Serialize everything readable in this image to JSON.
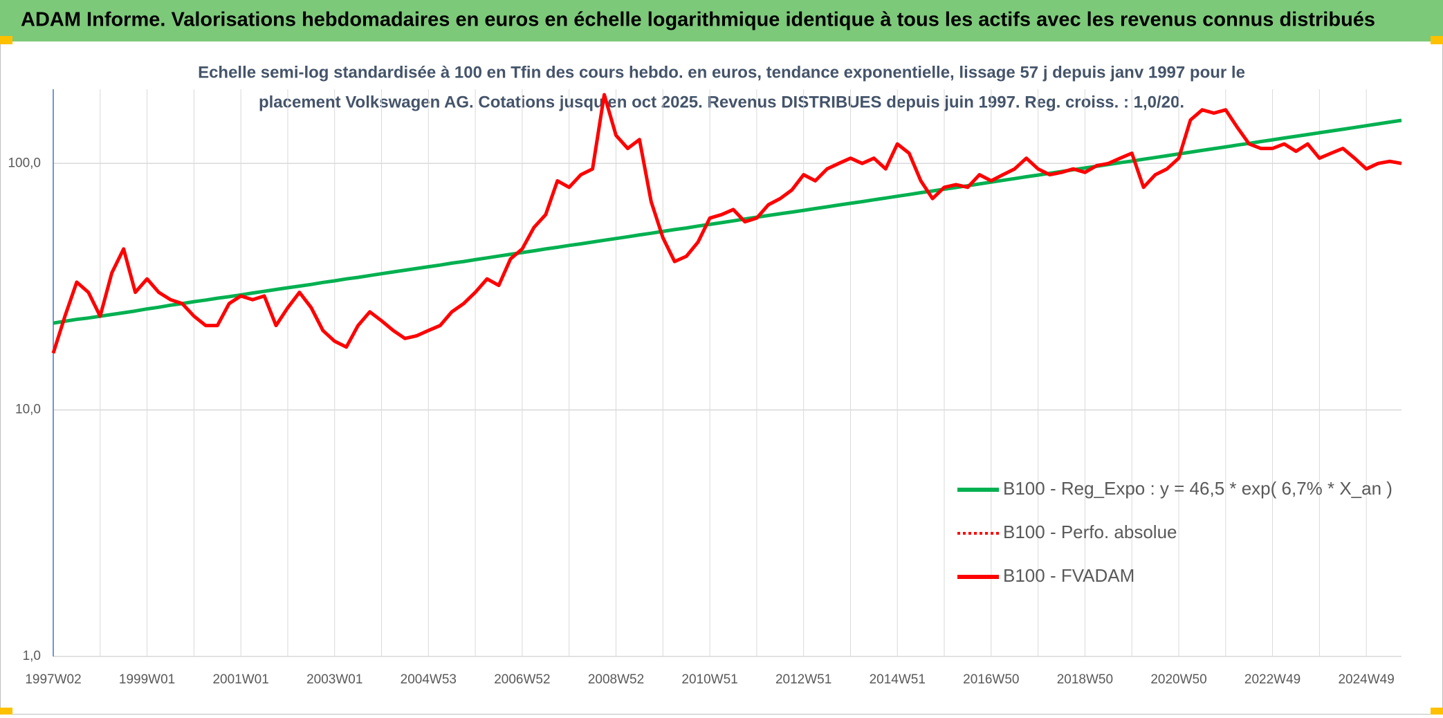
{
  "chart_data": {
    "type": "line",
    "title": "ADAM Informe. Valorisations hebdomadaires en euros en échelle logarithmique identique à tous les actifs avec les revenus connus distribués",
    "subtitle": [
      "Echelle semi-log standardisée à 100 en Tfin des cours hebdo. en euros, tendance exponentielle, lissage 57 j depuis janv 1997 pour le",
      "placement Volkswagen AG. Cotations jusqu'en oct 2025. Revenus DISTRIBUES depuis juin 1997. Reg. croiss. : 1,0/20."
    ],
    "categories": [
      "1997W02",
      null,
      null,
      null,
      null,
      null,
      null,
      null,
      "1999W01",
      null,
      null,
      null,
      null,
      null,
      null,
      null,
      "2001W01",
      null,
      null,
      null,
      null,
      null,
      null,
      null,
      "2003W01",
      null,
      null,
      null,
      null,
      null,
      null,
      null,
      "2004W53",
      null,
      null,
      null,
      null,
      null,
      null,
      null,
      "2006W52",
      null,
      null,
      null,
      null,
      null,
      null,
      null,
      "2008W52",
      null,
      null,
      null,
      null,
      null,
      null,
      null,
      "2010W51",
      null,
      null,
      null,
      null,
      null,
      null,
      null,
      "2012W51",
      null,
      null,
      null,
      null,
      null,
      null,
      null,
      "2014W51",
      null,
      null,
      null,
      null,
      null,
      null,
      null,
      "2016W50",
      null,
      null,
      null,
      null,
      null,
      null,
      null,
      "2018W50",
      null,
      null,
      null,
      null,
      null,
      null,
      null,
      "2020W50",
      null,
      null,
      null,
      null,
      null,
      null,
      null,
      "2022W49",
      null,
      null,
      null,
      null,
      null,
      null,
      null,
      "2024W49",
      null,
      null,
      null
    ],
    "y_scale": "log",
    "ylim": [
      1,
      200
    ],
    "yticks": [
      {
        "value": 1,
        "label": "1,0"
      },
      {
        "value": 10,
        "label": "10,0"
      },
      {
        "value": 100,
        "label": "100,0"
      }
    ],
    "grid": true,
    "series": [
      {
        "name": "B100 - Reg_Expo : y = 46,5 * exp( 6,7% *  X_an )",
        "color": "#00b050",
        "line_style": "solid",
        "values": [
          22.5,
          22.9,
          23.3,
          23.6,
          24.0,
          24.4,
          24.8,
          25.2,
          25.7,
          26.1,
          26.6,
          27.0,
          27.5,
          27.9,
          28.4,
          28.8,
          29.3,
          29.8,
          30.3,
          30.8,
          31.3,
          31.8,
          32.3,
          32.9,
          33.4,
          34.0,
          34.5,
          35.1,
          35.7,
          36.3,
          36.9,
          37.5,
          38.1,
          38.7,
          39.4,
          40.0,
          40.7,
          41.4,
          42.1,
          42.8,
          43.5,
          44.2,
          45.0,
          45.7,
          46.5,
          47.2,
          48.0,
          48.8,
          49.6,
          50.4,
          51.3,
          52.1,
          53.0,
          53.9,
          54.7,
          55.7,
          56.6,
          57.5,
          58.5,
          59.5,
          60.5,
          61.5,
          62.5,
          63.5,
          64.5,
          65.6,
          66.7,
          67.8,
          68.9,
          70.0,
          71.2,
          72.4,
          73.6,
          74.8,
          76.1,
          77.3,
          78.6,
          79.9,
          81.2,
          82.6,
          84.0,
          85.4,
          86.8,
          88.3,
          89.7,
          91.2,
          92.7,
          94.3,
          95.8,
          97.4,
          99.0,
          100.7,
          102.3,
          104.0,
          105.7,
          107.5,
          109.3,
          111.1,
          113.0,
          114.8,
          116.7,
          118.7,
          120.6,
          122.7,
          124.7,
          126.8,
          128.9,
          131.0,
          133.2,
          135.4,
          137.6,
          139.9,
          142.3,
          144.7,
          147.1,
          149.5
        ]
      },
      {
        "name": "B100 - Perfo. absolue",
        "color": "#ff0000",
        "line_style": "dotted",
        "values": [
          17,
          24,
          33,
          30,
          24,
          36,
          45,
          30,
          34,
          30,
          28,
          27,
          24,
          22,
          22,
          27,
          29,
          28,
          29,
          22,
          26,
          30,
          26,
          21,
          19,
          18,
          22,
          25,
          23,
          21,
          19.5,
          20,
          21,
          22,
          25,
          27,
          30,
          34,
          32,
          41,
          45,
          55,
          62,
          85,
          80,
          90,
          95,
          190,
          130,
          115,
          125,
          70,
          50,
          40,
          42,
          48,
          60,
          62,
          65,
          58,
          60,
          68,
          72,
          78,
          90,
          85,
          95,
          100,
          105,
          100,
          105,
          95,
          120,
          110,
          85,
          72,
          80,
          82,
          80,
          90,
          85,
          90,
          95,
          105,
          95,
          90,
          92,
          95,
          92,
          98,
          100,
          105,
          110,
          80,
          90,
          95,
          105,
          150,
          165,
          160,
          165,
          140,
          120,
          115,
          115,
          120,
          112,
          120,
          105,
          110,
          115,
          105,
          95,
          100,
          102,
          100
        ]
      },
      {
        "name": "B100 - FVADAM",
        "color": "#ff0000",
        "line_style": "solid",
        "values": [
          17,
          24,
          33,
          30,
          24,
          36,
          45,
          30,
          34,
          30,
          28,
          27,
          24,
          22,
          22,
          27,
          29,
          28,
          29,
          22,
          26,
          30,
          26,
          21,
          19,
          18,
          22,
          25,
          23,
          21,
          19.5,
          20,
          21,
          22,
          25,
          27,
          30,
          34,
          32,
          41,
          45,
          55,
          62,
          85,
          80,
          90,
          95,
          190,
          130,
          115,
          125,
          70,
          50,
          40,
          42,
          48,
          60,
          62,
          65,
          58,
          60,
          68,
          72,
          78,
          90,
          85,
          95,
          100,
          105,
          100,
          105,
          95,
          120,
          110,
          85,
          72,
          80,
          82,
          80,
          90,
          85,
          90,
          95,
          105,
          95,
          90,
          92,
          95,
          92,
          98,
          100,
          105,
          110,
          80,
          90,
          95,
          105,
          150,
          165,
          160,
          165,
          140,
          120,
          115,
          115,
          120,
          112,
          120,
          105,
          110,
          115,
          105,
          95,
          100,
          102,
          100
        ]
      }
    ]
  }
}
